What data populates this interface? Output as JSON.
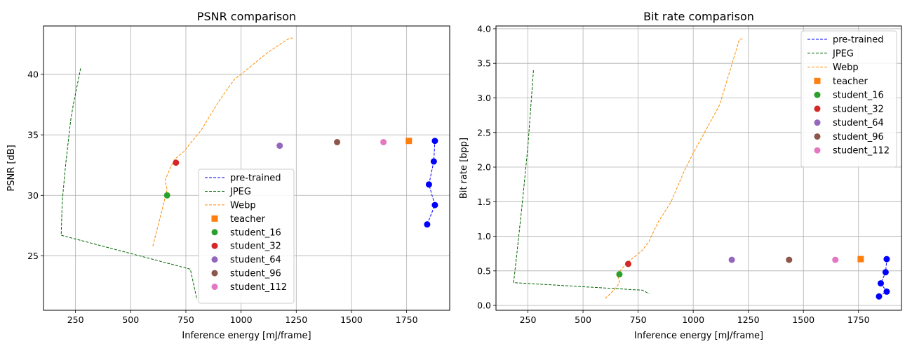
{
  "chart_data": [
    {
      "type": "line",
      "title": "PSNR comparison",
      "xlabel": "Inference energy [mJ/frame]",
      "ylabel": "PSNR [dB]",
      "xlim": [
        105,
        1945
      ],
      "ylim": [
        20.5,
        44
      ],
      "xticks": [
        250,
        500,
        750,
        1000,
        1250,
        1500,
        1750
      ],
      "xtick_labels": [
        "250",
        "500",
        "750",
        "1000",
        "1250",
        "1500",
        "1750"
      ],
      "yticks": [
        25,
        30,
        35,
        40
      ],
      "ytick_labels": [
        "25",
        "30",
        "35",
        "40"
      ],
      "grid": true,
      "legend_position": "lower-center",
      "series": [
        {
          "name": "pre-trained",
          "kind": "dashed-line-markers",
          "color": "#0000ff",
          "x": [
            1843,
            1878,
            1851,
            1873,
            1878
          ],
          "y": [
            27.6,
            29.2,
            30.9,
            32.8,
            34.5
          ]
        },
        {
          "name": "JPEG",
          "kind": "dashed-line",
          "color": "#006400",
          "x": [
            273,
            240,
            228,
            205,
            190,
            185,
            770,
            800
          ],
          "y": [
            40.5,
            37.5,
            36.2,
            32.5,
            29.5,
            26.7,
            23.9,
            21.4
          ]
        },
        {
          "name": "Webp",
          "kind": "dashed-line",
          "color": "#ff8c00",
          "x": [
            600,
            635,
            645,
            665,
            655,
            680,
            700,
            740,
            770,
            820,
            860,
            900,
            970,
            1000,
            1120,
            1220,
            1235
          ],
          "y": [
            25.8,
            28.3,
            29.0,
            30.5,
            31.2,
            32.3,
            33.0,
            33.6,
            34.3,
            35.4,
            36.6,
            37.8,
            39.6,
            40.0,
            41.8,
            43.0,
            43.0
          ]
        },
        {
          "name": "teacher",
          "kind": "square",
          "color": "#ff7f0e",
          "x": [
            1760
          ],
          "y": [
            34.5
          ]
        },
        {
          "name": "student_16",
          "kind": "circle",
          "color": "#2ca02c",
          "x": [
            665
          ],
          "y": [
            30.0
          ]
        },
        {
          "name": "student_32",
          "kind": "circle",
          "color": "#d62728",
          "x": [
            705
          ],
          "y": [
            32.7
          ]
        },
        {
          "name": "student_64",
          "kind": "circle",
          "color": "#9467bd",
          "x": [
            1175
          ],
          "y": [
            34.1
          ]
        },
        {
          "name": "student_96",
          "kind": "circle",
          "color": "#8c564b",
          "x": [
            1435
          ],
          "y": [
            34.4
          ]
        },
        {
          "name": "student_112",
          "kind": "circle",
          "color": "#e377c2",
          "x": [
            1645
          ],
          "y": [
            34.4
          ]
        }
      ]
    },
    {
      "type": "line",
      "title": "Bit rate comparison",
      "xlabel": "Inference energy [mJ/frame]",
      "ylabel": "Bit rate [bpp]",
      "xlim": [
        105,
        1945
      ],
      "ylim": [
        -0.07,
        4.04
      ],
      "xticks": [
        250,
        500,
        750,
        1000,
        1250,
        1500,
        1750
      ],
      "xtick_labels": [
        "250",
        "500",
        "750",
        "1000",
        "1250",
        "1500",
        "1750"
      ],
      "yticks": [
        0,
        0.5,
        1,
        1.5,
        2,
        2.5,
        3,
        3.5,
        4
      ],
      "ytick_labels": [
        "0.0",
        "0.5",
        "1.0",
        "1.5",
        "2.0",
        "2.5",
        "3.0",
        "3.5",
        "4.0"
      ],
      "grid": true,
      "legend_position": "upper-right",
      "series": [
        {
          "name": "pre-trained",
          "kind": "dashed-line-markers",
          "color": "#0000ff",
          "x": [
            1843,
            1878,
            1851,
            1873,
            1878
          ],
          "y": [
            0.13,
            0.2,
            0.32,
            0.48,
            0.67
          ]
        },
        {
          "name": "JPEG",
          "kind": "dashed-line",
          "color": "#006400",
          "x": [
            275,
            250,
            225,
            200,
            185,
            770,
            800
          ],
          "y": [
            3.4,
            2.3,
            1.5,
            0.75,
            0.33,
            0.22,
            0.17
          ]
        },
        {
          "name": "Webp",
          "kind": "dashed-line",
          "color": "#ff8c00",
          "x": [
            600,
            640,
            660,
            665,
            655,
            700,
            740,
            770,
            800,
            840,
            900,
            960,
            1000,
            1120,
            1210,
            1230
          ],
          "y": [
            0.1,
            0.22,
            0.3,
            0.35,
            0.45,
            0.62,
            0.72,
            0.8,
            0.93,
            1.2,
            1.5,
            1.95,
            2.2,
            2.9,
            3.85,
            3.85
          ]
        },
        {
          "name": "teacher",
          "kind": "square",
          "color": "#ff7f0e",
          "x": [
            1760
          ],
          "y": [
            0.67
          ]
        },
        {
          "name": "student_16",
          "kind": "circle",
          "color": "#2ca02c",
          "x": [
            665
          ],
          "y": [
            0.45
          ]
        },
        {
          "name": "student_32",
          "kind": "circle",
          "color": "#d62728",
          "x": [
            705
          ],
          "y": [
            0.6
          ]
        },
        {
          "name": "student_64",
          "kind": "circle",
          "color": "#9467bd",
          "x": [
            1175
          ],
          "y": [
            0.66
          ]
        },
        {
          "name": "student_96",
          "kind": "circle",
          "color": "#8c564b",
          "x": [
            1435
          ],
          "y": [
            0.66
          ]
        },
        {
          "name": "student_112",
          "kind": "circle",
          "color": "#e377c2",
          "x": [
            1645
          ],
          "y": [
            0.66
          ]
        }
      ]
    }
  ]
}
